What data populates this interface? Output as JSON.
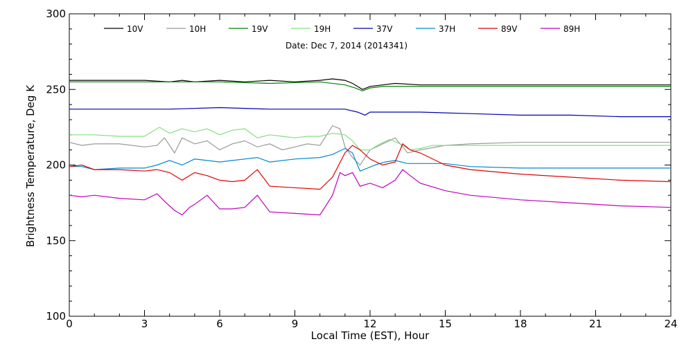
{
  "chart_data": {
    "type": "line",
    "subtitle": "Date: Dec  7, 2014 (2014341)",
    "xlabel": "Local Time (EST), Hour",
    "ylabel": "Brightness Temperature, Deg K",
    "xlim": [
      0,
      24
    ],
    "ylim": [
      100,
      300
    ],
    "x_ticks": [
      0,
      3,
      6,
      9,
      12,
      15,
      18,
      21,
      24
    ],
    "x_tick_labels": [
      "0",
      "3",
      "6",
      "9",
      "12",
      "15",
      "18",
      "21",
      "24"
    ],
    "y_ticks": [
      100,
      150,
      200,
      250,
      300
    ],
    "y_tick_labels": [
      "100",
      "150",
      "200",
      "250",
      "300"
    ],
    "grid": false,
    "legend_position": "top",
    "series": [
      {
        "name": "10V",
        "color": "#000000",
        "x": [
          0,
          1,
          2,
          3,
          4,
          4.5,
          5,
          6,
          7,
          8,
          9,
          10,
          10.5,
          11,
          11.3,
          11.7,
          12,
          12.5,
          13,
          14,
          15,
          16,
          18,
          20,
          22,
          24
        ],
        "y": [
          256,
          256,
          256,
          256,
          255,
          256,
          255,
          256,
          255,
          256,
          255,
          256,
          257,
          256,
          254,
          250,
          252,
          253,
          254,
          253,
          253,
          253,
          253,
          253,
          253,
          253
        ]
      },
      {
        "name": "10H",
        "color": "#999999",
        "x": [
          0,
          0.5,
          1,
          2,
          3,
          3.5,
          3.8,
          4.2,
          4.5,
          5,
          5.5,
          6,
          6.5,
          7,
          7.5,
          8,
          8.5,
          9,
          9.5,
          10,
          10.5,
          10.8,
          11,
          11.3,
          11.6,
          12,
          12.5,
          13,
          13.5,
          14,
          15,
          16,
          18,
          20,
          22,
          24
        ],
        "y": [
          215,
          213,
          214,
          214,
          212,
          213,
          218,
          208,
          218,
          214,
          216,
          210,
          214,
          216,
          212,
          214,
          210,
          212,
          214,
          213,
          226,
          224,
          212,
          205,
          200,
          210,
          214,
          218,
          208,
          210,
          213,
          214,
          215,
          215,
          215,
          215
        ]
      },
      {
        "name": "19V",
        "color": "#008000",
        "x": [
          0,
          2,
          4,
          6,
          8,
          10,
          11,
          11.4,
          11.7,
          12,
          12.5,
          13,
          14,
          16,
          18,
          20,
          22,
          24
        ],
        "y": [
          255,
          255,
          255,
          255,
          254,
          255,
          253,
          251,
          249,
          251,
          252,
          252,
          252,
          252,
          252,
          252,
          252,
          252
        ]
      },
      {
        "name": "19H",
        "color": "#80e080",
        "x": [
          0,
          1,
          2,
          2.5,
          3,
          3.3,
          3.6,
          4,
          4.5,
          5,
          5.5,
          6,
          6.5,
          7,
          7.5,
          8,
          8.5,
          9,
          9.5,
          10,
          10.5,
          11,
          11.3,
          11.6,
          12,
          12.4,
          12.8,
          13.2,
          13.6,
          14,
          14.5,
          15,
          16,
          18,
          20,
          22,
          24
        ],
        "y": [
          220,
          220,
          219,
          219,
          219,
          222,
          225,
          221,
          224,
          222,
          224,
          220,
          223,
          224,
          218,
          220,
          219,
          218,
          219,
          219,
          221,
          220,
          216,
          210,
          210,
          214,
          217,
          214,
          210,
          211,
          213,
          213,
          213,
          213,
          213,
          213,
          213
        ]
      },
      {
        "name": "37V",
        "color": "#0000b0",
        "x": [
          0,
          2,
          4,
          6,
          8,
          10,
          11,
          11.5,
          11.8,
          12,
          12.5,
          13,
          14,
          16,
          18,
          20,
          22,
          24
        ],
        "y": [
          237,
          237,
          237,
          238,
          237,
          237,
          237,
          235,
          233,
          235,
          235,
          235,
          235,
          234,
          233,
          233,
          232,
          232
        ]
      },
      {
        "name": "37H",
        "color": "#0088d0",
        "x": [
          0,
          0.5,
          1,
          2,
          3,
          3.5,
          4,
          4.5,
          5,
          5.5,
          6,
          6.5,
          7,
          7.5,
          8,
          9,
          10,
          10.5,
          11,
          11.3,
          11.6,
          11.9,
          12.2,
          12.6,
          13,
          13.5,
          14,
          15,
          16,
          18,
          20,
          22,
          24
        ],
        "y": [
          199,
          199,
          197,
          198,
          198,
          200,
          203,
          200,
          204,
          203,
          202,
          203,
          204,
          205,
          202,
          204,
          205,
          207,
          211,
          208,
          196,
          198,
          200,
          202,
          203,
          201,
          201,
          201,
          199,
          198,
          198,
          198,
          198
        ]
      },
      {
        "name": "89V",
        "color": "#e00000",
        "x": [
          0,
          0.5,
          1,
          2,
          3,
          3.5,
          4,
          4.5,
          5,
          5.5,
          6,
          6.5,
          7,
          7.5,
          8,
          9,
          10,
          10.5,
          11,
          11.3,
          11.6,
          12,
          12.5,
          13,
          13.3,
          13.6,
          14,
          15,
          16,
          18,
          20,
          22,
          24
        ],
        "y": [
          199,
          200,
          197,
          197,
          196,
          197,
          195,
          190,
          195,
          193,
          190,
          189,
          190,
          197,
          186,
          185,
          184,
          192,
          208,
          213,
          210,
          204,
          200,
          202,
          214,
          210,
          208,
          200,
          197,
          194,
          192,
          190,
          189
        ]
      },
      {
        "name": "89H",
        "color": "#c000c0",
        "x": [
          0,
          0.5,
          1,
          2,
          3,
          3.5,
          3.8,
          4.2,
          4.5,
          4.8,
          5,
          5.5,
          6,
          6.5,
          7,
          7.5,
          8,
          9,
          10,
          10.5,
          10.8,
          11,
          11.3,
          11.6,
          12,
          12.5,
          13,
          13.3,
          13.6,
          14,
          15,
          16,
          18,
          20,
          22,
          24
        ],
        "y": [
          180,
          179,
          180,
          178,
          177,
          181,
          176,
          170,
          167,
          172,
          174,
          180,
          171,
          171,
          172,
          180,
          169,
          168,
          167,
          180,
          195,
          193,
          195,
          186,
          188,
          185,
          190,
          197,
          193,
          188,
          183,
          180,
          177,
          175,
          173,
          172
        ]
      }
    ]
  }
}
